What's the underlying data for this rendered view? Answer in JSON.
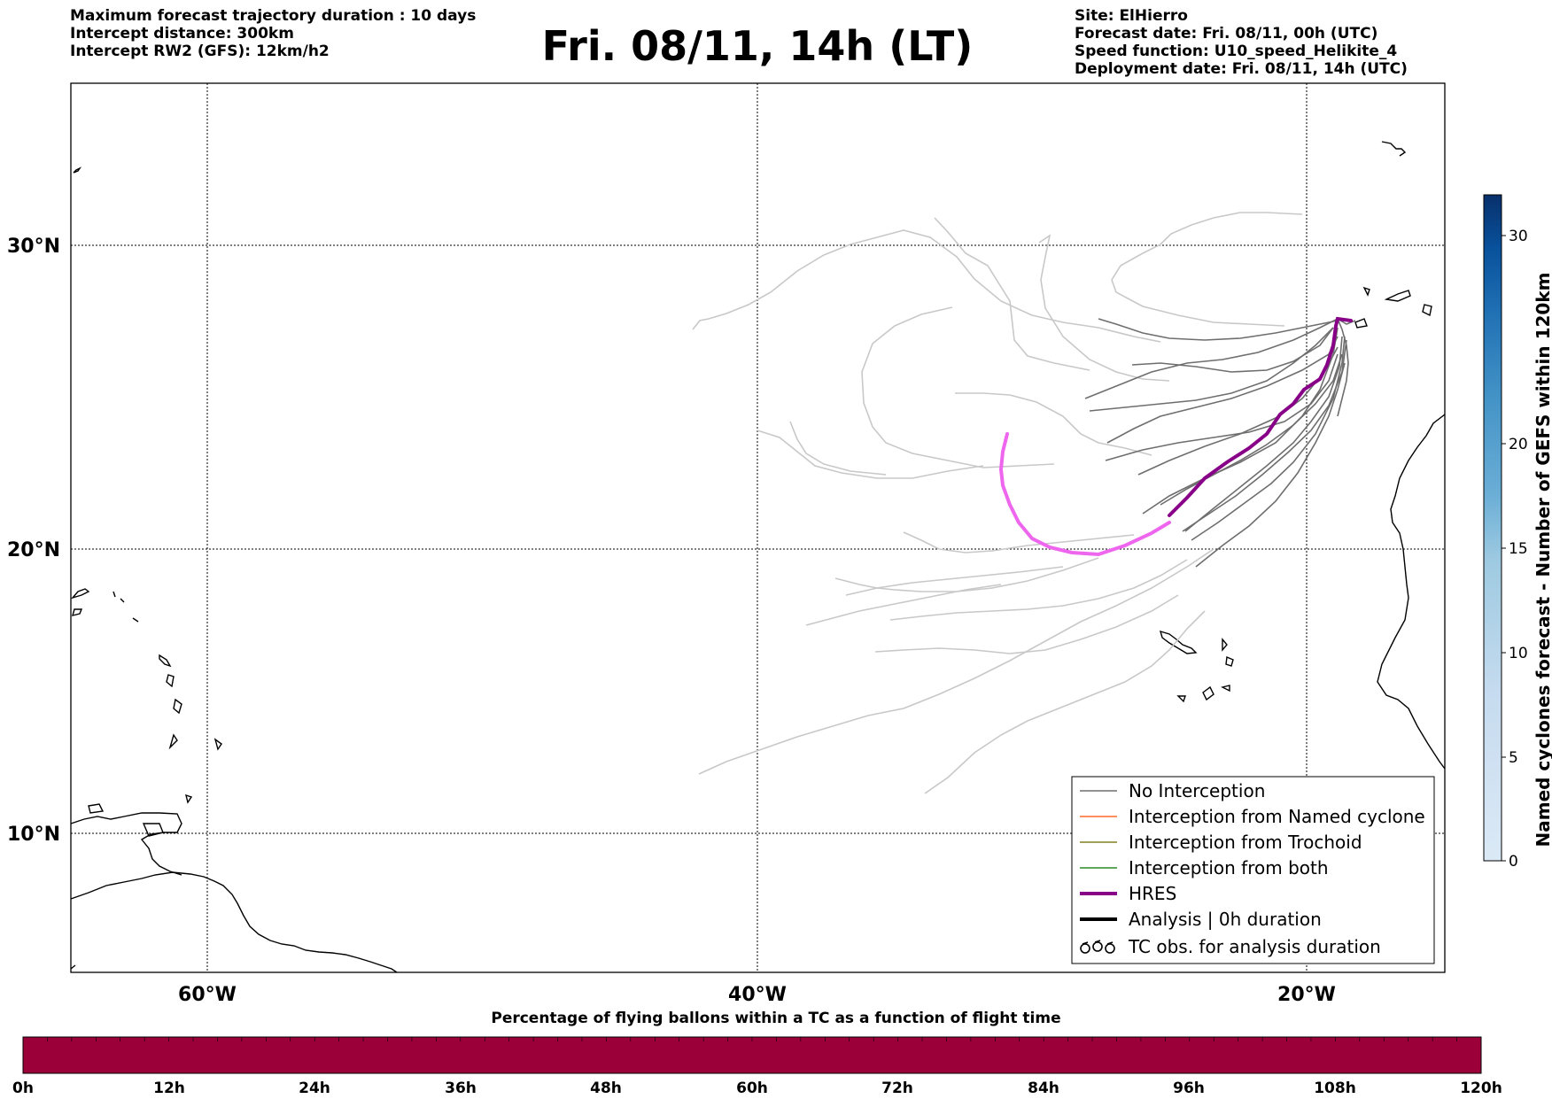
{
  "header": {
    "left_lines": [
      "Maximum forecast trajectory duration : 10 days",
      "Intercept distance: 300km",
      "Intercept RW2 (GFS):  12km/h2"
    ],
    "title": "Fri. 08/11, 14h (LT)",
    "right_lines": [
      "Site: ElHierro",
      "Forecast date: Fri. 08/11, 00h (UTC)",
      "Speed function: U10_speed_Helikite_4",
      "Deployment date: Fri. 08/11, 14h (UTC)"
    ]
  },
  "map": {
    "lat_labels": [
      "30°N",
      "20°N",
      "10°N"
    ],
    "lon_labels": [
      "60°W",
      "40°W",
      "20°W"
    ],
    "colors": {
      "no_interception": "#6e6e6e",
      "ensemble": "#c8c8c8",
      "hres": "#880088",
      "hres_light": "#ee66ee",
      "named_cyclone": "#ff6a2a",
      "trochoid": "#808020",
      "both": "#2a8a2a"
    }
  },
  "legend": {
    "items": [
      "No Interception",
      "Interception from Named cyclone",
      "Interception from Trochoid",
      "Interception from both",
      "HRES",
      "Analysis | 0h duration",
      "TC obs. for analysis duration"
    ]
  },
  "colorbar_right": {
    "label": "Named cyclones forecast - Number of GEFS within 120km",
    "ticks": [
      "0",
      "5",
      "10",
      "15",
      "20",
      "30"
    ],
    "colors": [
      "#dbe9f6",
      "#c6dbef",
      "#9ecae1",
      "#6baed6",
      "#4292c6",
      "#2171b5",
      "#08519c",
      "#08306b"
    ]
  },
  "colorbar_bottom": {
    "label": "Percentage of flying ballons within a TC as a function of flight time",
    "ticks": [
      "0h",
      "12h",
      "24h",
      "36h",
      "48h",
      "60h",
      "72h",
      "84h",
      "96h",
      "108h",
      "120h"
    ],
    "fill_color": "#9c0039"
  }
}
